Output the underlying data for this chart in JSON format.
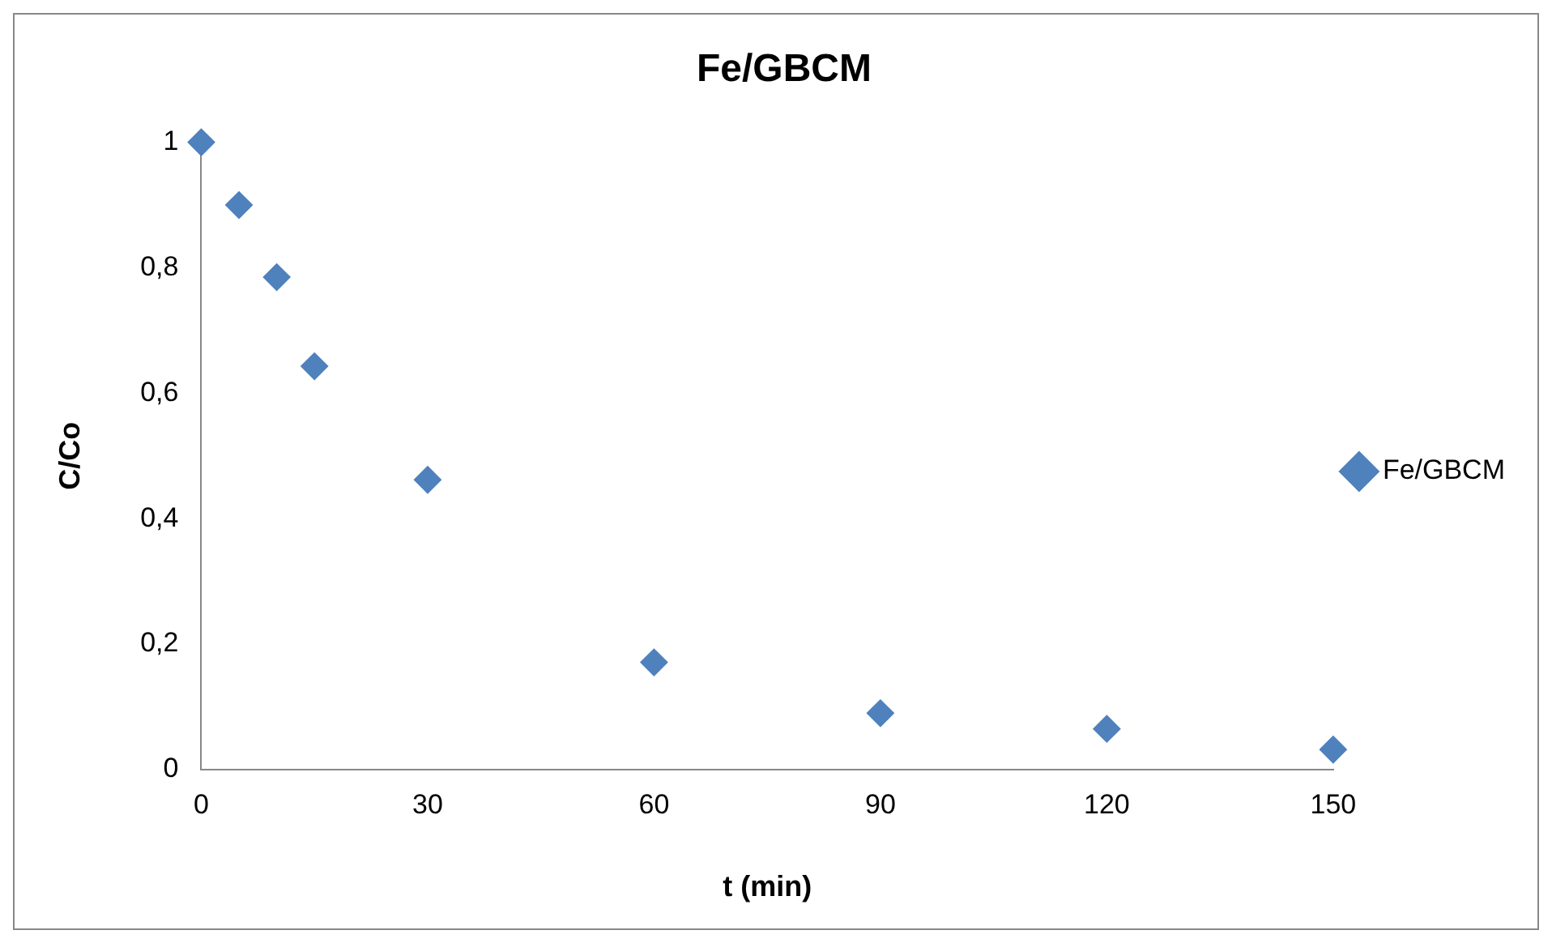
{
  "chart_data": {
    "type": "scatter",
    "title": "Fe/GBCM",
    "xlabel": "t (min)",
    "ylabel": "C/Co",
    "x": [
      0,
      5,
      10,
      15,
      30,
      60,
      90,
      120,
      150
    ],
    "series": [
      {
        "name": "Fe/GBCM",
        "color": "#4f81bd",
        "values": [
          1,
          0.9,
          0.785,
          0.643,
          0.462,
          0.171,
          0.09,
          0.065,
          0.032
        ]
      }
    ],
    "xlim": [
      0,
      150
    ],
    "xticks": [
      0,
      30,
      60,
      90,
      120,
      150
    ],
    "ylim": [
      0,
      1
    ],
    "yticks": [
      0,
      {
        "value": 0.2,
        "label": "0,2"
      },
      {
        "value": 0.4,
        "label": "0,4"
      },
      {
        "value": 0.6,
        "label": "0,6"
      },
      {
        "value": 0.8,
        "label": "0,8"
      },
      1
    ],
    "grid": false,
    "legend": "right",
    "marker": "diamond"
  }
}
